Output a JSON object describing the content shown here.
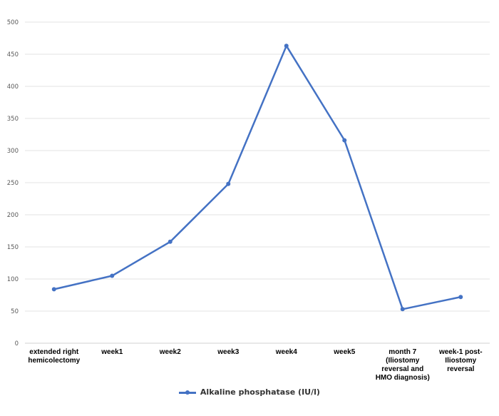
{
  "chart_data": {
    "type": "line",
    "title": "",
    "xlabel": "",
    "ylabel": "",
    "ylim": [
      0,
      500
    ],
    "yticks": [
      0,
      50,
      100,
      150,
      200,
      250,
      300,
      350,
      400,
      450,
      500
    ],
    "grid": true,
    "legend_position": "bottom",
    "categories": [
      "extended right\nhemicolectomy",
      "week1",
      "week2",
      "week3",
      "week4",
      "week5",
      "month 7\n(Iliostomy\nreversal and\nHMO diagnosis)",
      "week-1  post-\nIliostomy\nreversal"
    ],
    "series": [
      {
        "name": "Alkaline phosphatase (IU/l)",
        "color": "#4472C4",
        "values": [
          84,
          105,
          158,
          248,
          463,
          316,
          53,
          72
        ]
      }
    ]
  },
  "legend": {
    "label": "Alkaline phosphatase (IU/l)"
  }
}
